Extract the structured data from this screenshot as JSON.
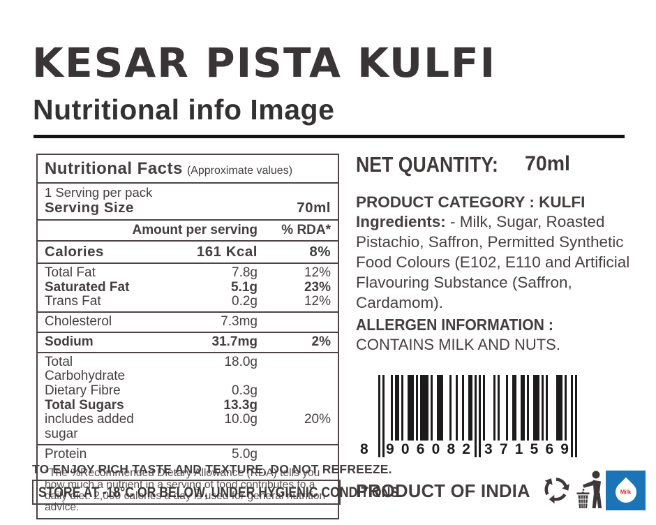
{
  "header": {
    "title": "KESAR PISTA KULFI",
    "subtitle": "Nutritional info Image"
  },
  "nutrition_table": {
    "title": "Nutritional Facts",
    "title_note": "(Approximate values)",
    "servings_line": "1 Serving per pack",
    "serving_size_label": "Serving Size",
    "serving_size_value": "70ml",
    "col_amount": "Amount per serving",
    "col_rda": "% RDA*",
    "groups": [
      [
        {
          "label": "Calories",
          "amount": "161 Kcal",
          "rda": "8%",
          "bold": true
        }
      ],
      [
        {
          "label": "Total Fat",
          "amount": "7.8g",
          "rda": "12%",
          "bold": false
        },
        {
          "label": "Saturated Fat",
          "amount": "5.1g",
          "rda": "23%",
          "bold": true
        },
        {
          "label": "Trans Fat",
          "amount": "0.2g",
          "rda": "12%",
          "bold": false
        }
      ],
      [
        {
          "label": "Cholesterol",
          "amount": "7.3mg",
          "rda": "",
          "bold": false
        }
      ],
      [
        {
          "label": "Sodium",
          "amount": "31.7mg",
          "rda": "2%",
          "bold": true
        }
      ],
      [
        {
          "label": "Total Carbohydrate",
          "amount": "18.0g",
          "rda": "",
          "bold": false
        },
        {
          "label": "Dietary Fibre",
          "amount": "0.3g",
          "rda": "",
          "bold": false
        },
        {
          "label": "Total Sugars",
          "amount": "13.3g",
          "rda": "",
          "bold": true
        },
        {
          "label": "includes added sugar",
          "amount": "10.0g",
          "rda": "20%",
          "bold": false
        }
      ],
      [
        {
          "label": "Protein",
          "amount": "5.0g",
          "rda": "",
          "bold": false
        }
      ]
    ],
    "footnote": "*The %Recommended Dietary Allowance (RDA) tells you how much a nutrient in a serving of food contributes to a daily diet. 2,000 calories a day is used for general nutrition advice."
  },
  "notices": {
    "refreeze": "TO ENJOY RICH TASTE AND TEXTURE, DO NOT REFREEZE.",
    "storage": "STORE AT -18°C OR BELOW, UNDER HYGIENIC CONDITIONS."
  },
  "right_panel": {
    "net_quantity_label": "NET QUANTITY:",
    "net_quantity_value": "70ml",
    "category": "PRODUCT CATEGORY : KULFI",
    "ingredients_lead": "Ingredients:",
    "ingredients_rest": " - Milk, Sugar, Roasted Pistachio, Saffron, Permitted Synthetic Food Colours (E102, E110 and Artificial Flavouring Substance (Saffron, Cardamom).",
    "allergen_heading": "ALLERGEN INFORMATION :",
    "allergen_body": "CONTAINS MILK AND NUTS."
  },
  "barcode": {
    "value": "8906082371569",
    "first_digit": "8",
    "group1": "906082",
    "group2": "371569"
  },
  "footer": {
    "origin": "PRODUCT OF INDIA",
    "logo_text": "Milk"
  },
  "colors": {
    "ink": "#403a3b",
    "barcode": "#1c1a1a",
    "logo_blue": "#1c74b8",
    "logo_red": "#d92b2b"
  },
  "icons": {
    "recycle": "recycle-icon",
    "tidyman": "dispose-properly-icon",
    "milk_drop": "milk-drop-logo"
  }
}
